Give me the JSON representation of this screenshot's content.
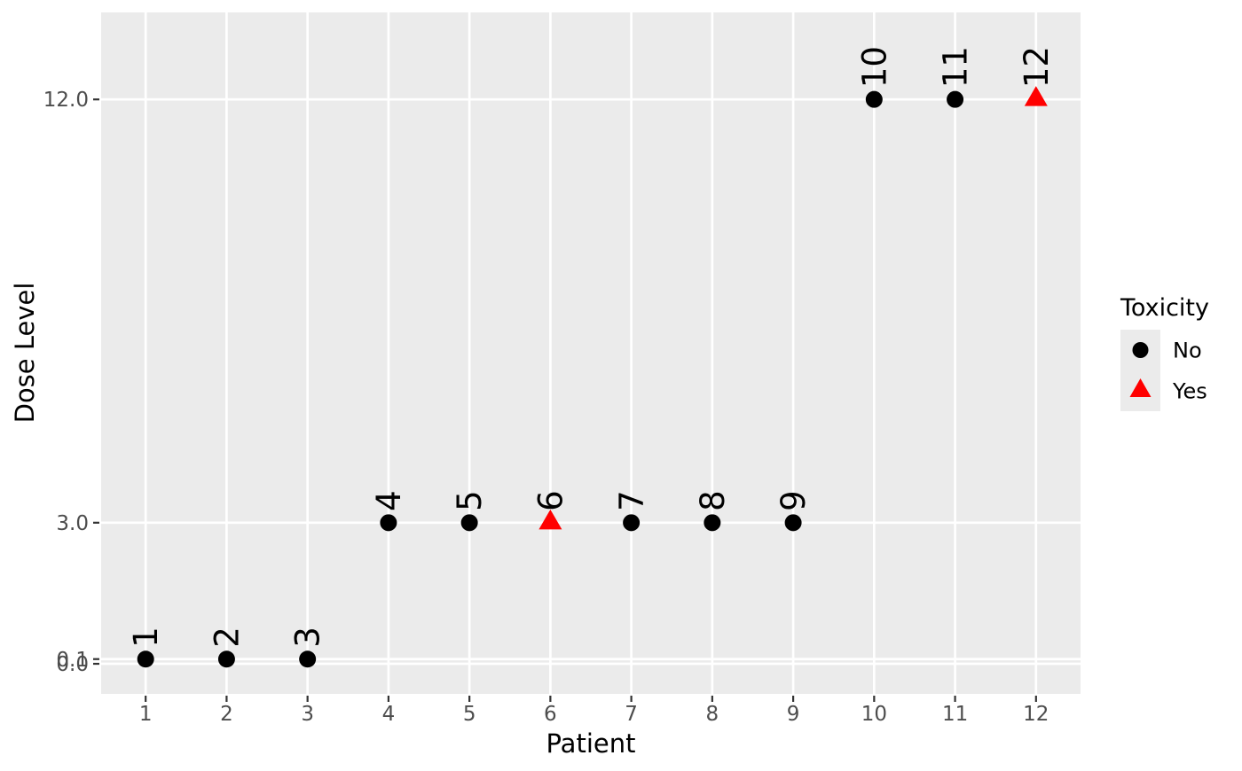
{
  "chart_data": {
    "type": "scatter",
    "title": "",
    "xlabel": "Patient",
    "ylabel": "Dose Level",
    "xlim": [
      0.45,
      12.55
    ],
    "ylim": [
      -0.64,
      13.85
    ],
    "grid": {
      "major": true,
      "minor": false
    },
    "x_ticks": [
      {
        "value": 1,
        "label": "1"
      },
      {
        "value": 2,
        "label": "2"
      },
      {
        "value": 3,
        "label": "3"
      },
      {
        "value": 4,
        "label": "4"
      },
      {
        "value": 5,
        "label": "5"
      },
      {
        "value": 6,
        "label": "6"
      },
      {
        "value": 7,
        "label": "7"
      },
      {
        "value": 8,
        "label": "8"
      },
      {
        "value": 9,
        "label": "9"
      },
      {
        "value": 10,
        "label": "10"
      },
      {
        "value": 11,
        "label": "11"
      },
      {
        "value": 12,
        "label": "12"
      }
    ],
    "y_ticks": [
      {
        "value": 0.0,
        "label": "0.0"
      },
      {
        "value": 0.1,
        "label": "0.1"
      },
      {
        "value": 3.0,
        "label": "3.0"
      },
      {
        "value": 12.0,
        "label": "12.0"
      }
    ],
    "points": [
      {
        "patient": 1,
        "dose": 0.1,
        "toxicity": "No",
        "label": "1"
      },
      {
        "patient": 2,
        "dose": 0.1,
        "toxicity": "No",
        "label": "2"
      },
      {
        "patient": 3,
        "dose": 0.1,
        "toxicity": "No",
        "label": "3"
      },
      {
        "patient": 4,
        "dose": 3.0,
        "toxicity": "No",
        "label": "4"
      },
      {
        "patient": 5,
        "dose": 3.0,
        "toxicity": "No",
        "label": "5"
      },
      {
        "patient": 6,
        "dose": 3.0,
        "toxicity": "Yes",
        "label": "6"
      },
      {
        "patient": 7,
        "dose": 3.0,
        "toxicity": "No",
        "label": "7"
      },
      {
        "patient": 8,
        "dose": 3.0,
        "toxicity": "No",
        "label": "8"
      },
      {
        "patient": 9,
        "dose": 3.0,
        "toxicity": "No",
        "label": "9"
      },
      {
        "patient": 10,
        "dose": 12.0,
        "toxicity": "No",
        "label": "10"
      },
      {
        "patient": 11,
        "dose": 12.0,
        "toxicity": "No",
        "label": "11"
      },
      {
        "patient": 12,
        "dose": 12.0,
        "toxicity": "Yes",
        "label": "12"
      }
    ],
    "legend": {
      "title": "Toxicity",
      "position": "right",
      "entries": [
        {
          "label": "No",
          "shape": "circle",
          "color": "#000000"
        },
        {
          "label": "Yes",
          "shape": "triangle",
          "color": "#FF0000"
        }
      ]
    }
  },
  "style": {
    "figure_bg": "#FFFFFF",
    "panel_bg": "#EBEBEB",
    "grid_color": "#FFFFFF",
    "tick_color": "#333333",
    "tick_label_color": "#4D4D4D",
    "axis_title_color": "#000000",
    "point_label_color": "#000000",
    "legend_key_bg": "#EBEBEB",
    "no_color": "#000000",
    "yes_color": "#FF0000"
  }
}
